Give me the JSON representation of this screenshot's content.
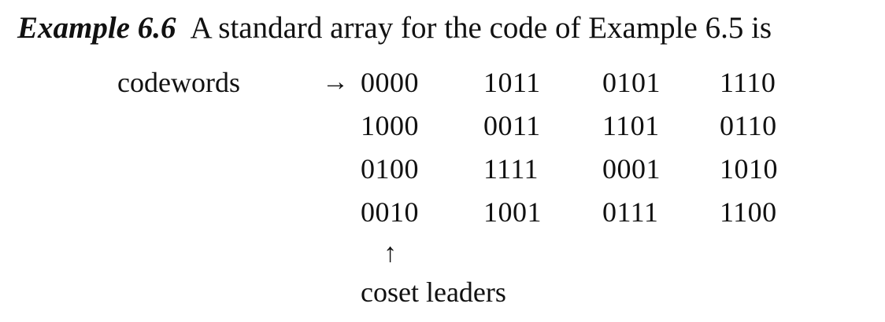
{
  "heading": {
    "label": "Example 6.6",
    "text": "A standard array for the code of Example 6.5 is"
  },
  "labels": {
    "codewords": "codewords",
    "codewords_arrow": "→",
    "coset_arrow": "↑",
    "coset_leaders": "coset leaders"
  },
  "array": [
    [
      "0000",
      "1011",
      "0101",
      "1110"
    ],
    [
      "1000",
      "0011",
      "1101",
      "0110"
    ],
    [
      "0100",
      "1111",
      "0001",
      "1010"
    ],
    [
      "0010",
      "1001",
      "0111",
      "1100"
    ]
  ]
}
